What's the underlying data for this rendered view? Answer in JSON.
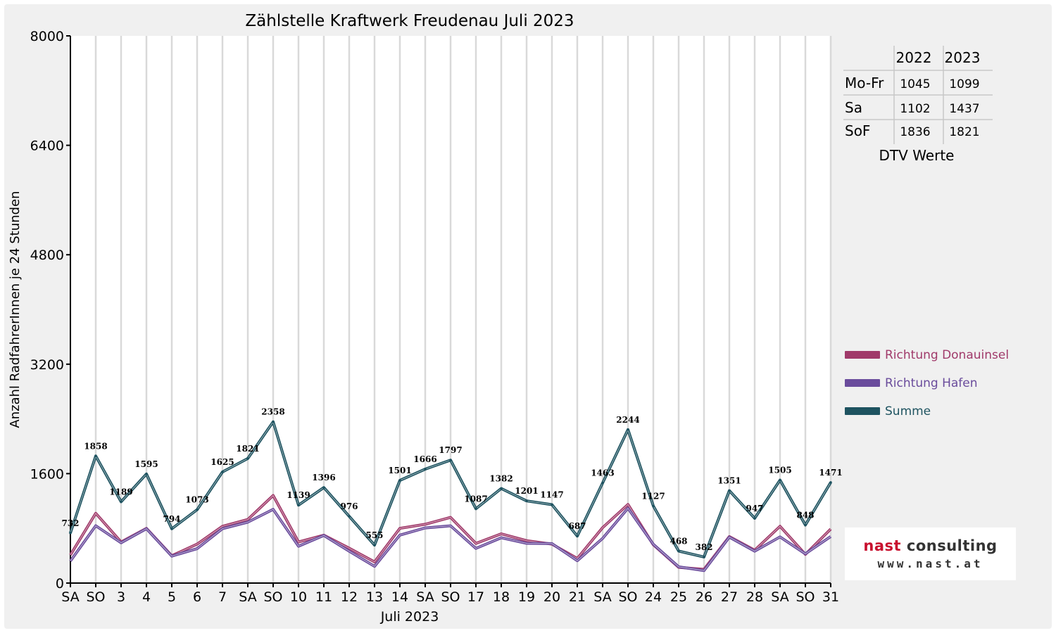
{
  "chart_data": {
    "type": "line",
    "title": "Zählstelle Kraftwerk Freudenau Juli 2023",
    "xlabel": "Juli 2023",
    "ylabel": "Anzahl RadfahrerInnen je 24 Stunden",
    "ylim": [
      0,
      8000
    ],
    "yticks": [
      "0",
      "1600",
      "3200",
      "4800",
      "6400",
      "8000"
    ],
    "grid": "vertical",
    "legend_position": "right",
    "categories": [
      "SA",
      "SO",
      "3",
      "4",
      "5",
      "6",
      "7",
      "SA",
      "SO",
      "10",
      "11",
      "12",
      "13",
      "14",
      "SA",
      "SO",
      "17",
      "18",
      "19",
      "20",
      "21",
      "SA",
      "SO",
      "24",
      "25",
      "26",
      "27",
      "28",
      "SA",
      "SO",
      "31"
    ],
    "weekend_categories": [
      "SO"
    ],
    "series": [
      {
        "name": "Richtung Donauinsel",
        "color": "#a03a6a",
        "labeled": false,
        "values": [
          410,
          1020,
          600,
          800,
          400,
          570,
          830,
          930,
          1280,
          600,
          700,
          510,
          310,
          800,
          860,
          960,
          580,
          720,
          620,
          570,
          360,
          810,
          1150,
          560,
          230,
          200,
          680,
          480,
          830,
          420,
          790
        ]
      },
      {
        "name": "Richtung Hafen",
        "color": "#6a4c9c",
        "labeled": false,
        "values": [
          322,
          838,
          589,
          795,
          394,
          503,
          795,
          891,
          1078,
          539,
          696,
          466,
          245,
          701,
          806,
          837,
          507,
          662,
          581,
          577,
          327,
          653,
          1094,
          567,
          238,
          182,
          671,
          467,
          675,
          428,
          681
        ]
      },
      {
        "name": "Summe",
        "color": "#1e5360",
        "labeled": true,
        "values": [
          732,
          1858,
          1189,
          1595,
          794,
          1073,
          1625,
          1821,
          2358,
          1139,
          1396,
          976,
          555,
          1501,
          1666,
          1797,
          1087,
          1382,
          1201,
          1147,
          687,
          1463,
          2244,
          1127,
          468,
          382,
          1351,
          947,
          1505,
          848,
          1471
        ]
      }
    ]
  },
  "dtv_table": {
    "headers": [
      "",
      "2022",
      "2023"
    ],
    "rows": [
      {
        "label": "Mo-Fr",
        "v2022": "1045",
        "v2023": "1099"
      },
      {
        "label": "Sa",
        "v2022": "1102",
        "v2023": "1437"
      },
      {
        "label": "SoF",
        "v2022": "1836",
        "v2023": "1821"
      }
    ],
    "caption": "DTV Werte"
  },
  "legend": [
    {
      "label": "Richtung Donauinsel",
      "color": "#a03a6a"
    },
    {
      "label": "Richtung Hafen",
      "color": "#6a4c9c"
    },
    {
      "label": "Summe",
      "color": "#1e5360"
    }
  ],
  "logo": {
    "main_red": "nast",
    "main_dark": "consulting",
    "sub": "www.nast.at"
  },
  "colors": {
    "weekend_label": "#e00000",
    "grid": "#d9d9d9",
    "axis": "#000000"
  }
}
